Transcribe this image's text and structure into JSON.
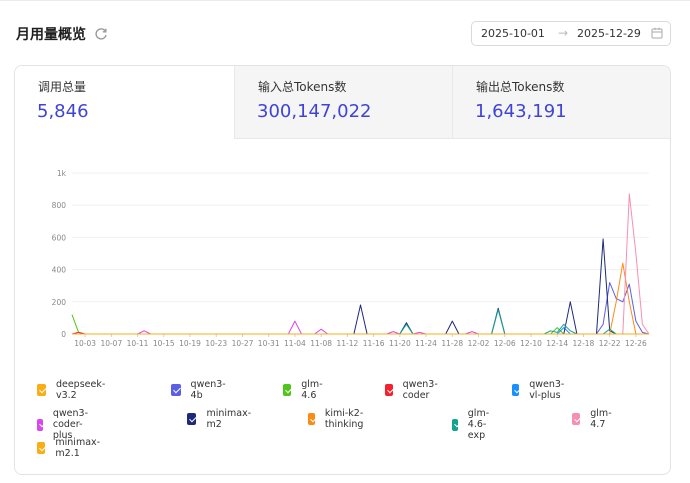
{
  "header": {
    "title": "月用量概览",
    "refresh_icon": "refresh-icon"
  },
  "date_range": {
    "start": "2025-10-01",
    "separator": "→",
    "end": "2025-12-29",
    "icon": "calendar-icon"
  },
  "stats": [
    {
      "label": "调用总量",
      "value": "5,846"
    },
    {
      "label": "输入总Tokens数",
      "value": "300,147,022"
    },
    {
      "label": "输出总Tokens数",
      "value": "1,643,191"
    }
  ],
  "chart_data": {
    "type": "line",
    "ylim": [
      0,
      1000
    ],
    "y_ticks": [
      "0",
      "200",
      "400",
      "600",
      "800",
      "1k"
    ],
    "x_tick_labels": [
      "10-03",
      "10-07",
      "10-11",
      "10-15",
      "10-19",
      "10-23",
      "10-27",
      "10-31",
      "11-04",
      "11-08",
      "11-12",
      "11-16",
      "11-20",
      "11-24",
      "11-28",
      "12-02",
      "12-06",
      "12-10",
      "12-14",
      "12-18",
      "12-22",
      "12-26"
    ],
    "x_start": "10-01",
    "x_end": "12-29",
    "series": [
      {
        "name": "deepseek-v3.2",
        "color": "#faad14",
        "points": [
          [
            0,
            0
          ],
          [
            88,
            0
          ]
        ]
      },
      {
        "name": "qwen3-4b",
        "color": "#5b5fe6",
        "points": [
          [
            0,
            0
          ],
          [
            80,
            0
          ],
          [
            81,
            60
          ],
          [
            82,
            320
          ],
          [
            83,
            220
          ],
          [
            84,
            200
          ],
          [
            85,
            310
          ],
          [
            86,
            80
          ],
          [
            87,
            10
          ],
          [
            88,
            0
          ]
        ]
      },
      {
        "name": "glm-4.6",
        "color": "#52c41a",
        "points": [
          [
            0,
            120
          ],
          [
            1,
            10
          ],
          [
            2,
            0
          ],
          [
            73,
            0
          ],
          [
            74,
            40
          ],
          [
            75,
            0
          ],
          [
            88,
            0
          ]
        ]
      },
      {
        "name": "qwen3-coder",
        "color": "#f5222d",
        "points": [
          [
            0,
            0
          ],
          [
            1,
            10
          ],
          [
            2,
            0
          ],
          [
            88,
            0
          ]
        ]
      },
      {
        "name": "qwen3-vl-plus",
        "color": "#1890ff",
        "points": [
          [
            0,
            0
          ],
          [
            74,
            0
          ],
          [
            75,
            40
          ],
          [
            76,
            0
          ],
          [
            88,
            0
          ]
        ]
      },
      {
        "name": "qwen3-coder-plus",
        "color": "#d946ef",
        "points": [
          [
            0,
            0
          ],
          [
            10,
            0
          ],
          [
            11,
            20
          ],
          [
            12,
            0
          ],
          [
            33,
            0
          ],
          [
            34,
            80
          ],
          [
            35,
            0
          ],
          [
            37,
            0
          ],
          [
            38,
            30
          ],
          [
            39,
            0
          ],
          [
            48,
            0
          ],
          [
            49,
            15
          ],
          [
            50,
            0
          ],
          [
            52,
            0
          ],
          [
            53,
            10
          ],
          [
            54,
            0
          ],
          [
            60,
            0
          ],
          [
            61,
            15
          ],
          [
            62,
            0
          ],
          [
            88,
            0
          ]
        ]
      },
      {
        "name": "minimax-m2",
        "color": "#1d2a7a",
        "points": [
          [
            0,
            0
          ],
          [
            43,
            0
          ],
          [
            44,
            180
          ],
          [
            45,
            0
          ],
          [
            50,
            0
          ],
          [
            51,
            70
          ],
          [
            52,
            0
          ],
          [
            57,
            0
          ],
          [
            58,
            80
          ],
          [
            59,
            0
          ],
          [
            64,
            0
          ],
          [
            65,
            160
          ],
          [
            66,
            0
          ],
          [
            75,
            0
          ],
          [
            76,
            200
          ],
          [
            77,
            0
          ],
          [
            80,
            0
          ],
          [
            81,
            590
          ],
          [
            82,
            20
          ],
          [
            83,
            0
          ],
          [
            88,
            0
          ]
        ]
      },
      {
        "name": "kimi-k2-thinking",
        "color": "#fa8c16",
        "points": [
          [
            0,
            0
          ],
          [
            82,
            0
          ],
          [
            83,
            200
          ],
          [
            84,
            440
          ],
          [
            85,
            200
          ],
          [
            86,
            0
          ],
          [
            88,
            0
          ]
        ]
      },
      {
        "name": "glm-4.6-exp",
        "color": "#13a38f",
        "points": [
          [
            0,
            0
          ],
          [
            50,
            0
          ],
          [
            51,
            60
          ],
          [
            52,
            0
          ],
          [
            64,
            0
          ],
          [
            65,
            150
          ],
          [
            66,
            0
          ],
          [
            72,
            0
          ],
          [
            73,
            20
          ],
          [
            74,
            10
          ],
          [
            75,
            60
          ],
          [
            76,
            20
          ],
          [
            77,
            0
          ],
          [
            81,
            0
          ],
          [
            82,
            30
          ],
          [
            83,
            0
          ],
          [
            88,
            0
          ]
        ]
      },
      {
        "name": "glm-4.7",
        "color": "#f78fb3",
        "points": [
          [
            0,
            0
          ],
          [
            84,
            0
          ],
          [
            85,
            870
          ],
          [
            86,
            500
          ],
          [
            87,
            60
          ],
          [
            88,
            0
          ]
        ]
      },
      {
        "name": "minimax-m2.1",
        "color": "#faad14",
        "points": [
          [
            0,
            0
          ],
          [
            88,
            0
          ]
        ]
      }
    ]
  }
}
